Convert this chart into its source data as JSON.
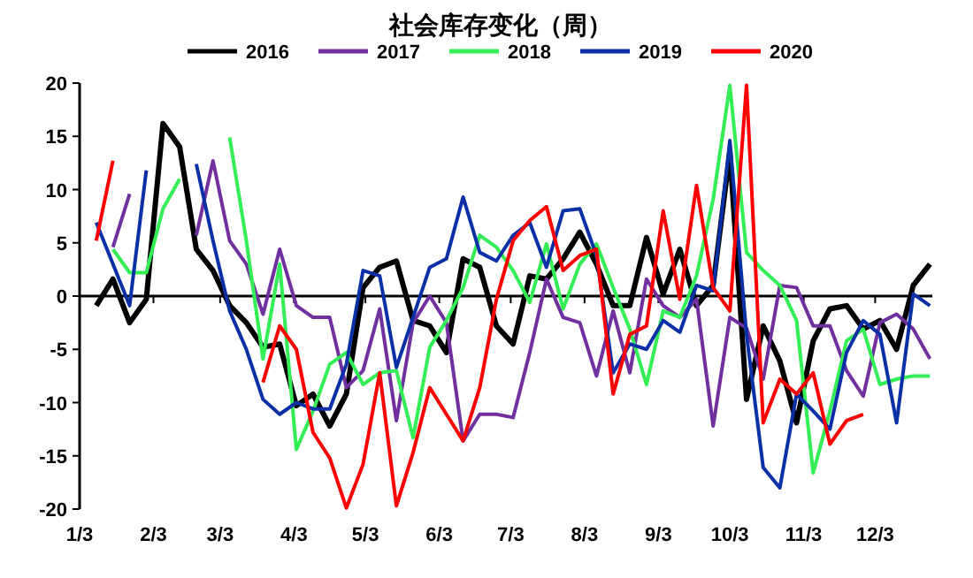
{
  "chart_data": {
    "type": "line",
    "title": "社会库存变化（周）",
    "x": [
      "--01-10",
      "--01-17",
      "--01-24",
      "--01-31",
      "--02-07",
      "--02-14",
      "--02-21",
      "--02-28",
      "--03-07",
      "--03-14",
      "--03-21",
      "--03-28",
      "--04-04",
      "--04-11",
      "--04-18",
      "--04-25",
      "--05-02",
      "--05-09",
      "--05-16",
      "--05-23",
      "--05-30",
      "--06-06",
      "--06-13",
      "--06-20",
      "--06-27",
      "--07-04",
      "--07-11",
      "--07-18",
      "--07-25",
      "--08-01",
      "--08-08",
      "--08-15",
      "--08-22",
      "--08-29",
      "--09-05",
      "--09-12",
      "--09-19",
      "--09-26",
      "--10-03",
      "--10-10",
      "--10-17",
      "--10-24",
      "--10-31",
      "--11-07",
      "--11-14",
      "--11-21",
      "--11-28",
      "--12-05",
      "--12-12",
      "--12-19",
      "--12-26"
    ],
    "series": [
      {
        "name": "2016",
        "color": "#000000",
        "values": [
          -0.9,
          1.6,
          -2.5,
          -0.3,
          16.2,
          14,
          4.4,
          2.4,
          -0.9,
          -2.5,
          -4.8,
          -4.5,
          -10.3,
          -9.2,
          -12.2,
          -9.2,
          0.8,
          2.7,
          3.3,
          -2.3,
          -2.8,
          -5.3,
          3.5,
          2.7,
          -2.8,
          -4.5,
          1.9,
          1.6,
          3.5,
          6.0,
          3.0,
          -0.9,
          -0.9,
          5.5,
          0.2,
          4.4,
          -0.9,
          1.0,
          13.5,
          -9.7,
          -2.8,
          -6.1,
          -11.9,
          -4.2,
          -1.2,
          -0.9,
          -3.1,
          -2.3,
          -5.0,
          1.0,
          3.0
        ]
      },
      {
        "name": "2017",
        "color": "#7030a0",
        "values": [
          null,
          4.6,
          9.6,
          null,
          null,
          null,
          5.7,
          12.7,
          5.2,
          3.0,
          -1.7,
          4.4,
          -0.9,
          -2.0,
          -2.0,
          -8.6,
          -7.0,
          -1.2,
          -11.7,
          -2.5,
          0,
          -2.5,
          -13.6,
          -11.1,
          -11.1,
          -11.4,
          -5.3,
          1.6,
          -2.0,
          -2.5,
          -7.5,
          -1.4,
          -7.2,
          1.6,
          -0.9,
          -2.0,
          -0.3,
          -12.2,
          -2.0,
          -3.0,
          -7.8,
          1.0,
          0.8,
          -2.8,
          -2.8,
          -7.0,
          -9.4,
          -2.5,
          -1.7,
          -3.1,
          -5.9
        ]
      },
      {
        "name": "2018",
        "color": "#33ee55",
        "values": [
          null,
          4.4,
          2.2,
          2.2,
          8.2,
          11,
          null,
          null,
          14.9,
          5.2,
          -5.9,
          3.0,
          -14.4,
          -10.8,
          -6.4,
          -5.3,
          -8.3,
          -7.2,
          -7.0,
          -13.3,
          -4.8,
          -2.3,
          0.8,
          5.7,
          4.6,
          2.4,
          -0.6,
          4.9,
          -1.2,
          3.0,
          4.9,
          0.8,
          -3.1,
          -8.3,
          -1.4,
          -2.0,
          1.9,
          9.1,
          19.8,
          4.1,
          2.4,
          1.0,
          -2.3,
          -16.6,
          -10.8,
          -4.2,
          -3.1,
          -8.3,
          -7.8,
          -7.5,
          -7.5
        ]
      },
      {
        "name": "2019",
        "color": "#0b2fa6",
        "values": [
          6.9,
          3.0,
          -0.9,
          11.8,
          null,
          null,
          12.4,
          5.2,
          -1.4,
          -5.0,
          -9.7,
          -11.1,
          -10.0,
          -10.6,
          -10.6,
          -6.4,
          2.4,
          1.9,
          -6.7,
          -2.0,
          2.7,
          3.5,
          9.3,
          4.1,
          3.3,
          5.7,
          6.9,
          2.7,
          8.0,
          8.2,
          3.8,
          -7.2,
          -4.5,
          -5.0,
          -2.3,
          -3.4,
          1.0,
          0.5,
          14.6,
          -3.6,
          -16.1,
          -18.0,
          -9.2,
          -10.8,
          -12.5,
          -5.3,
          -2.3,
          -3.6,
          -11.9,
          0.2,
          -0.9
        ]
      },
      {
        "name": "2020",
        "color": "#ff0000",
        "values": [
          5.2,
          12.7,
          null,
          null,
          null,
          null,
          null,
          null,
          null,
          null,
          -8.1,
          -2.8,
          -5.0,
          -12.8,
          -15.2,
          -19.9,
          -15.8,
          -7.2,
          -19.7,
          -14.7,
          -8.6,
          -11.1,
          -13.6,
          -8.6,
          -0.3,
          5.2,
          7.1,
          8.4,
          2.4,
          3.8,
          4.4,
          -9.2,
          -3.6,
          -2.8,
          8.0,
          -0.3,
          10.4,
          0.8,
          -1.4,
          19.8,
          -11.9,
          -7.8,
          -9.2,
          -7.2,
          -13.9,
          -11.7,
          -11.1,
          null,
          null,
          null,
          null
        ]
      }
    ],
    "xlim": [
      "--01-03",
      "--12-27"
    ],
    "xticks": [
      {
        "value": "--01-03",
        "label": "1/3"
      },
      {
        "value": "--02-03",
        "label": "2/3"
      },
      {
        "value": "--03-03",
        "label": "3/3"
      },
      {
        "value": "--04-03",
        "label": "4/3"
      },
      {
        "value": "--05-03",
        "label": "5/3"
      },
      {
        "value": "--06-03",
        "label": "6/3"
      },
      {
        "value": "--07-03",
        "label": "7/3"
      },
      {
        "value": "--08-03",
        "label": "8/3"
      },
      {
        "value": "--09-03",
        "label": "9/3"
      },
      {
        "value": "--10-03",
        "label": "10/3"
      },
      {
        "value": "--11-03",
        "label": "11/3"
      },
      {
        "value": "--12-03",
        "label": "12/3"
      }
    ],
    "ylim": [
      -20,
      20
    ],
    "yticks": [
      -20,
      -15,
      -10,
      -5,
      0,
      5,
      10,
      15,
      20
    ],
    "legend": "top",
    "marker": "none",
    "line_style": "solid"
  }
}
